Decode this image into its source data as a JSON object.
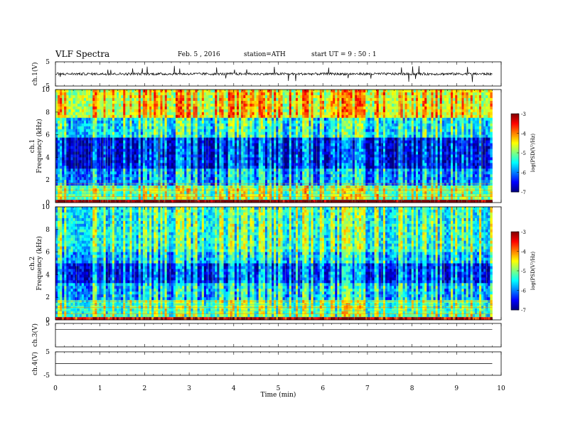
{
  "header": {
    "title": "VLF  Spectra",
    "date": "Feb. 5  , 2016",
    "station": "station=ATH",
    "start": "start  UT  =   9  : 50 : 1"
  },
  "chart_data": [
    {
      "type": "line",
      "panel": "ch1-waveform",
      "ylabel": "ch.1(V)",
      "yticks": [
        "5",
        "-5"
      ],
      "ylim": [
        -5,
        5
      ],
      "description_values": {
        "baseline_V": 0,
        "noise_amplitude_V": 0.5,
        "spike_amplitude_V": 3
      }
    },
    {
      "type": "heatmap",
      "panel": "ch1-spectrogram",
      "ylabel": "ch.1\nFrequency  (kHz)",
      "ylabel_lines": [
        "ch.1",
        "Frequency  (kHz)"
      ],
      "yticks": [
        "0",
        "2",
        "4",
        "6",
        "8",
        "10"
      ],
      "ylim": [
        0,
        10
      ],
      "colorbar": {
        "label": "log(PSD(V²/Hz)",
        "ticks": [
          "-3",
          "-4",
          "-5",
          "-6",
          "-7"
        ],
        "range": [
          -7,
          -3
        ]
      },
      "bands_kHz_levels": [
        [
          0,
          0.2,
          -3
        ],
        [
          0.2,
          1.6,
          -5.2
        ],
        [
          1.6,
          3.0,
          -6.2
        ],
        [
          3.0,
          5.8,
          -6.8
        ],
        [
          5.8,
          7.5,
          -5.8
        ],
        [
          7.5,
          10,
          -4.8
        ]
      ]
    },
    {
      "type": "heatmap",
      "panel": "ch2-spectrogram",
      "ylabel": "ch.2\nFrequency  (kHz)",
      "ylabel_lines": [
        "ch.2",
        "Frequency  (kHz)"
      ],
      "yticks": [
        "0",
        "2",
        "4",
        "6",
        "8",
        "10"
      ],
      "ylim": [
        0,
        10
      ],
      "colorbar": {
        "label": "log(PSD(V²/Hz)",
        "ticks": [
          "-3",
          "-4",
          "-5",
          "-6",
          "-7"
        ],
        "range": [
          -7,
          -3
        ]
      },
      "bands_kHz_levels": [
        [
          0,
          0.3,
          -3.5
        ],
        [
          0.3,
          1.8,
          -5.4
        ],
        [
          1.8,
          3.2,
          -6.0
        ],
        [
          3.2,
          5.0,
          -6.6
        ],
        [
          5.0,
          6.0,
          -6.0
        ],
        [
          6.0,
          10,
          -5.6
        ]
      ]
    },
    {
      "type": "line",
      "panel": "ch3-waveform",
      "ylabel": "ch.3(V)",
      "yticks": [
        "5"
      ],
      "ylim": [
        -5,
        5
      ]
    },
    {
      "type": "line",
      "panel": "ch4-waveform",
      "ylabel": "ch.4(V)",
      "yticks": [
        "5",
        "-5"
      ],
      "ylim": [
        -5,
        5
      ]
    }
  ],
  "xaxis": {
    "label": "Time  (min)",
    "ticks": [
      "0",
      "1",
      "2",
      "3",
      "4",
      "5",
      "6",
      "7",
      "8",
      "9",
      "10"
    ],
    "range": [
      0,
      10
    ],
    "data_end_min": 9.8
  }
}
